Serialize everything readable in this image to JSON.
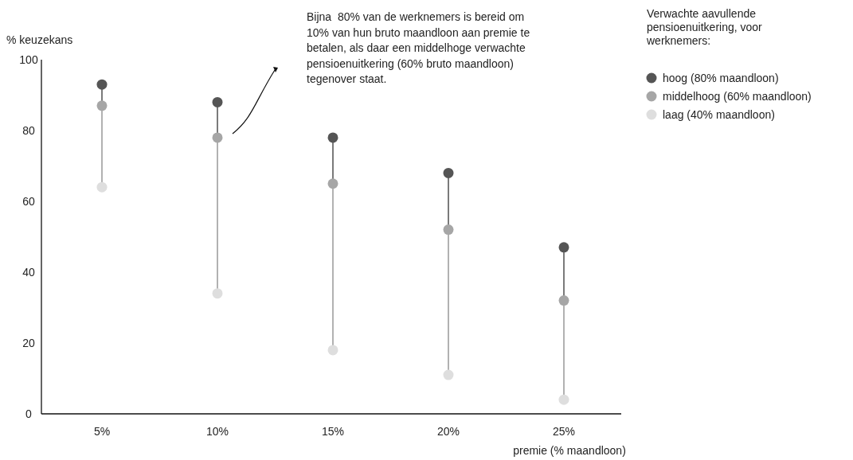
{
  "chart_data": {
    "type": "scatter",
    "ylabel": "% keuzekans",
    "xlabel": "premie (% maandloon)",
    "legend_title": "Verwachte aavullende pensioenuitkering, voor werknemers:",
    "legend": "top right",
    "grid": false,
    "marker": "circle",
    "categories": [
      "5%",
      "10%",
      "15%",
      "20%",
      "25%"
    ],
    "ylim": [
      0,
      100
    ],
    "yticks": [
      0,
      20,
      40,
      60,
      80,
      100
    ],
    "series": [
      {
        "name": "hoog (80% maandloon)",
        "color": "#555555",
        "values": [
          93,
          88,
          78,
          68,
          47
        ]
      },
      {
        "name": "middelhoog (60% maandloon)",
        "color": "#a6a6a6",
        "values": [
          87,
          78,
          65,
          52,
          32
        ]
      },
      {
        "name": "laag (40% maandloon)",
        "color": "#dedede",
        "values": [
          64,
          34,
          18,
          11,
          4
        ]
      }
    ],
    "annotations": [
      "Bijna  80% van de werknemers is bereid om 10% van hun bruto maandloon aan premie te betalen, als daar een middelhoge verwachte pensioenuitkering (60% bruto maandloon) tegenover staat."
    ]
  }
}
